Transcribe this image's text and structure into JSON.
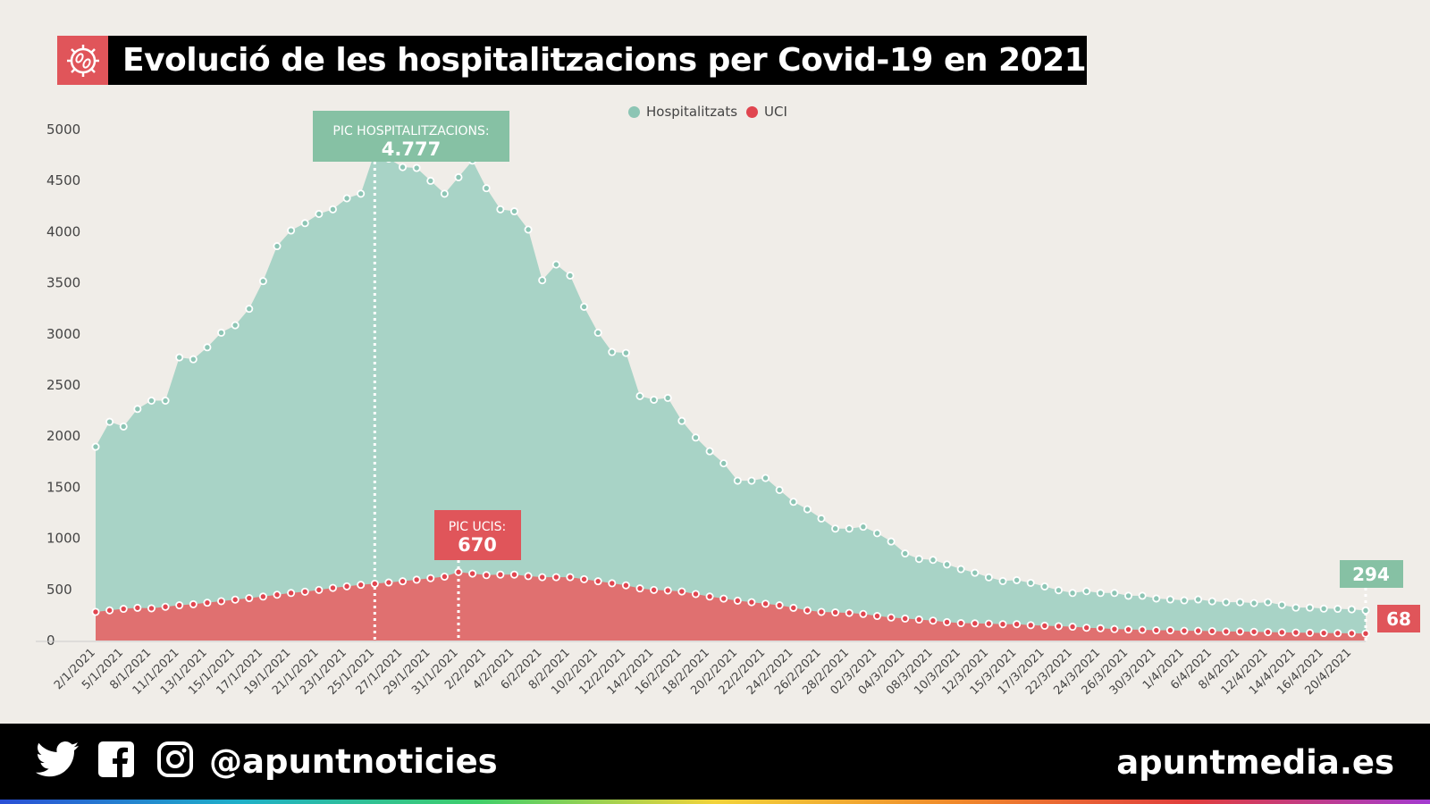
{
  "header": {
    "title": "Evolució de les hospitalitzacions per Covid-19 en 2021",
    "icon": "virus-icon"
  },
  "chart_data": {
    "type": "area",
    "title": "Evolució de les hospitalitzacions per Covid-19 en 2021",
    "xlabel": "",
    "ylabel": "",
    "ylim": [
      0,
      5000
    ],
    "y_ticks": [
      0,
      500,
      1000,
      1500,
      2000,
      2500,
      3000,
      3500,
      4000,
      4500,
      5000
    ],
    "legend_position": "top",
    "grid": false,
    "x_tick_labels": [
      "2/1/2021",
      "5/1/2021",
      "8/1/2021",
      "11/1/2021",
      "13/1/2021",
      "15/1/2021",
      "17/1/2021",
      "19/1/2021",
      "21/1/2021",
      "23/1/2021",
      "25/1/2021",
      "27/1/2021",
      "29/1/2021",
      "31/1/2021",
      "2/2/2021",
      "4/2/2021",
      "6/2/2021",
      "8/2/2021",
      "10/2/2021",
      "12/2/2021",
      "14/2/2021",
      "16/2/2021",
      "18/2/2021",
      "20/2/2021",
      "22/2/2021",
      "24/2/2021",
      "26/2/2021",
      "28/2/2021",
      "02/3/2021",
      "04/3/2021",
      "08/3/2021",
      "10/3/2021",
      "12/3/2021",
      "15/3/2021",
      "17/3/2021",
      "22/3/2021",
      "24/3/2021",
      "26/3/2021",
      "30/3/2021",
      "1/4/2021",
      "6/4/2021",
      "8/4/2021",
      "12/4/2021",
      "14/4/2021",
      "16/4/2021",
      "20/4/2021"
    ],
    "series": [
      {
        "name": "Hospitalitzats",
        "color": "#a8d3c6",
        "marker_color": "#8cc5b4",
        "values": [
          1896,
          2140,
          2094,
          2266,
          2347,
          2347,
          2770,
          2752,
          2869,
          3012,
          3085,
          3246,
          3517,
          3859,
          4012,
          4084,
          4174,
          4219,
          4327,
          4372,
          4777,
          4715,
          4632,
          4624,
          4498,
          4372,
          4533,
          4696,
          4426,
          4219,
          4200,
          4021,
          3525,
          3679,
          3571,
          3265,
          3012,
          2823,
          2814,
          2392,
          2356,
          2374,
          2149,
          1986,
          1852,
          1734,
          1564,
          1564,
          1590,
          1473,
          1357,
          1284,
          1194,
          1095,
          1095,
          1113,
          1050,
          969,
          852,
          798,
          789,
          744,
          699,
          663,
          618,
          582,
          591,
          564,
          529,
          492,
          465,
          483,
          465,
          465,
          438,
          438,
          411,
          402,
          393,
          402,
          384,
          375,
          375,
          366,
          375,
          348,
          322,
          322,
          312,
          310,
          305,
          294
        ]
      },
      {
        "name": "UCI",
        "color": "#e07070",
        "marker_color": "#e0454f",
        "values": [
          280,
          295,
          310,
          320,
          315,
          330,
          345,
          355,
          370,
          385,
          400,
          415,
          430,
          448,
          465,
          478,
          495,
          515,
          530,
          545,
          556,
          568,
          580,
          595,
          610,
          625,
          670,
          655,
          640,
          645,
          645,
          630,
          620,
          620,
          620,
          600,
          580,
          560,
          540,
          510,
          495,
          490,
          480,
          455,
          430,
          410,
          390,
          375,
          360,
          345,
          320,
          295,
          280,
          275,
          270,
          260,
          240,
          225,
          215,
          205,
          195,
          180,
          170,
          168,
          165,
          160,
          160,
          150,
          145,
          140,
          135,
          125,
          120,
          112,
          108,
          105,
          100,
          100,
          95,
          95,
          92,
          88,
          88,
          85,
          82,
          80,
          78,
          75,
          73,
          72,
          70,
          68
        ]
      }
    ],
    "annotations": {
      "hosp_peak": {
        "label": "PIC HOSPITALITZACIONS:",
        "value": "4.777",
        "index": 20,
        "color": "#86c1a4"
      },
      "uci_peak": {
        "label": "PIC UCIS:",
        "value": "670",
        "index": 26,
        "color": "#e0555a"
      },
      "hosp_last": {
        "value": "294",
        "color": "#86c1a4"
      },
      "uci_last": {
        "value": "68",
        "color": "#e0555a"
      }
    }
  },
  "footer": {
    "icons": [
      "twitter-icon",
      "facebook-icon",
      "instagram-icon"
    ],
    "handle": "@apuntnoticies",
    "site": "apuntmedia.es"
  }
}
